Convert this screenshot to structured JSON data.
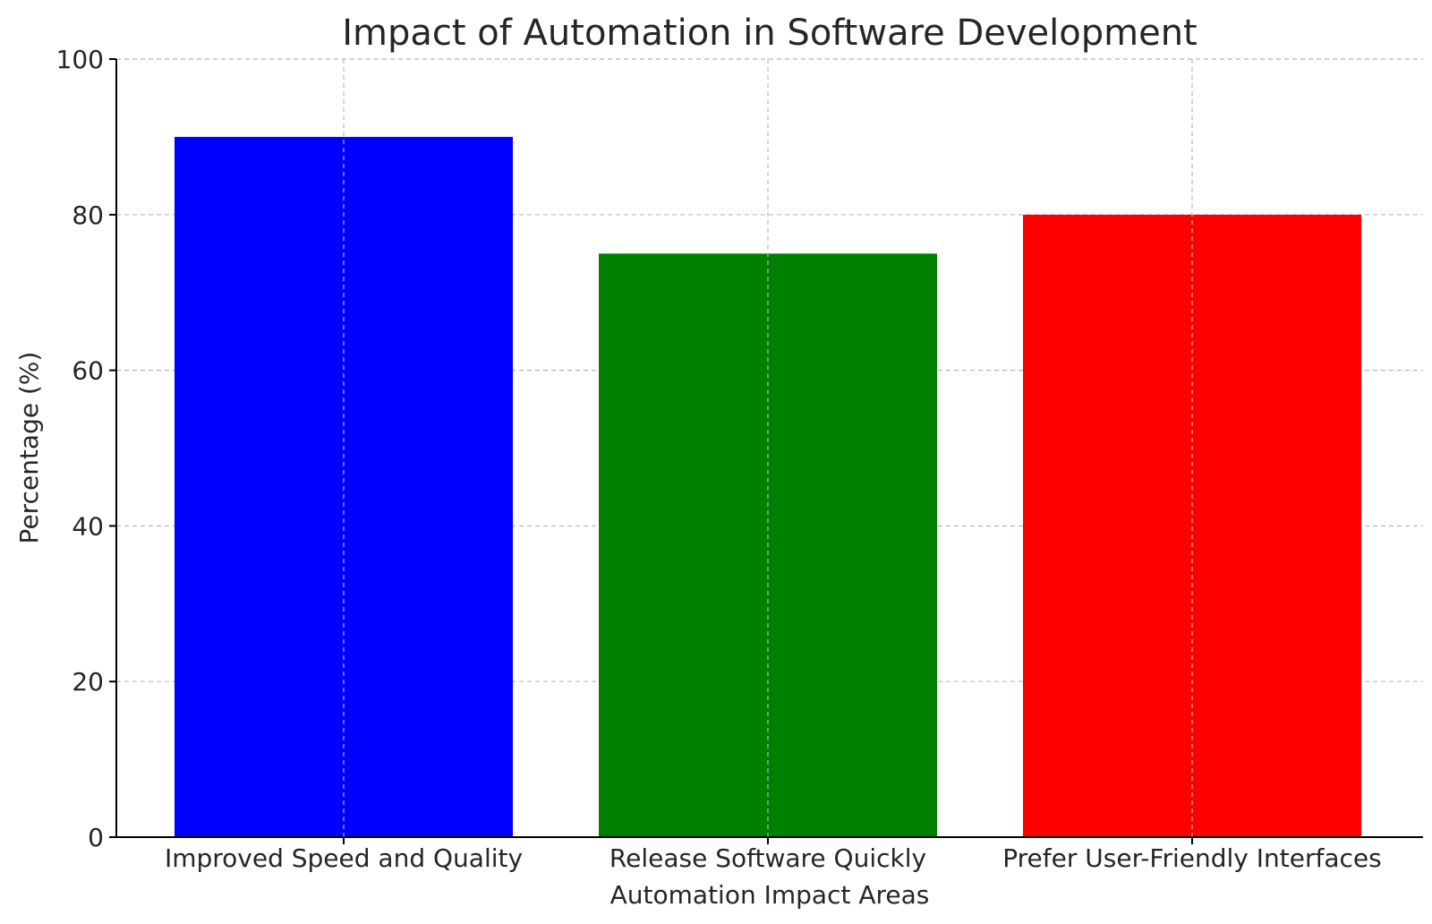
{
  "chart_data": {
    "type": "bar",
    "title": "Impact of Automation in Software Development",
    "xlabel": "Automation Impact Areas",
    "ylabel": "Percentage (%)",
    "categories": [
      "Improved Speed and Quality",
      "Release Software Quickly",
      "Prefer User-Friendly Interfaces"
    ],
    "values": [
      90,
      75,
      80
    ],
    "colors": [
      "#0000ff",
      "#008000",
      "#ff0000"
    ],
    "ylim": [
      0,
      100
    ],
    "yticks": [
      0,
      20,
      40,
      60,
      80,
      100
    ],
    "grid": true,
    "legend": "none"
  }
}
